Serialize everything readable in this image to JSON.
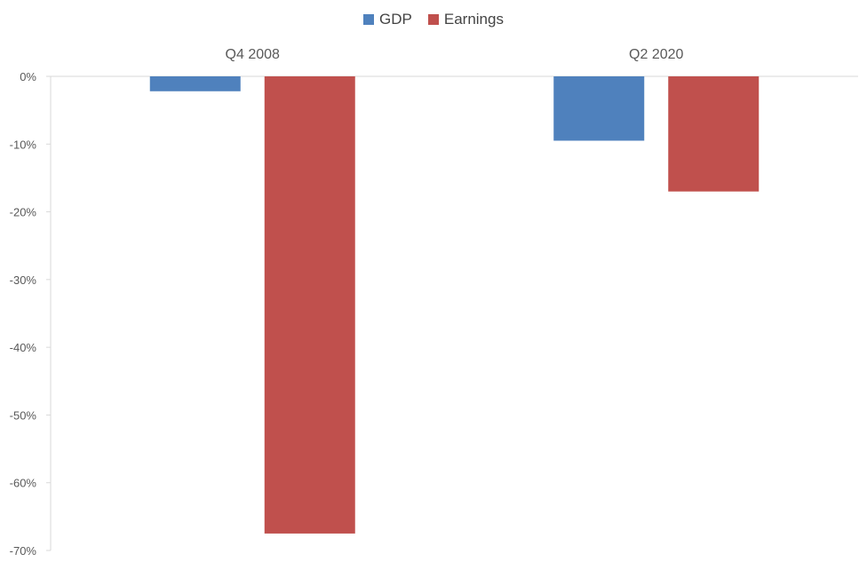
{
  "chart_data": {
    "type": "bar",
    "categories": [
      "Q4 2008",
      "Q2 2020"
    ],
    "series": [
      {
        "name": "GDP",
        "color": "#4F81BD",
        "values": [
          -2.2,
          -9.5
        ]
      },
      {
        "name": "Earnings",
        "color": "#C0504D",
        "values": [
          -67.5,
          -17.0
        ]
      }
    ],
    "ylim": [
      -70,
      0
    ],
    "yticks": [
      0,
      -10,
      -20,
      -30,
      -40,
      -50,
      -60,
      -70
    ],
    "ytick_labels": [
      "0%",
      "-10%",
      "-20%",
      "-30%",
      "-40%",
      "-50%",
      "-60%",
      "-70%"
    ],
    "legend_position": "top-center",
    "category_label_position": "top",
    "grid": false
  }
}
